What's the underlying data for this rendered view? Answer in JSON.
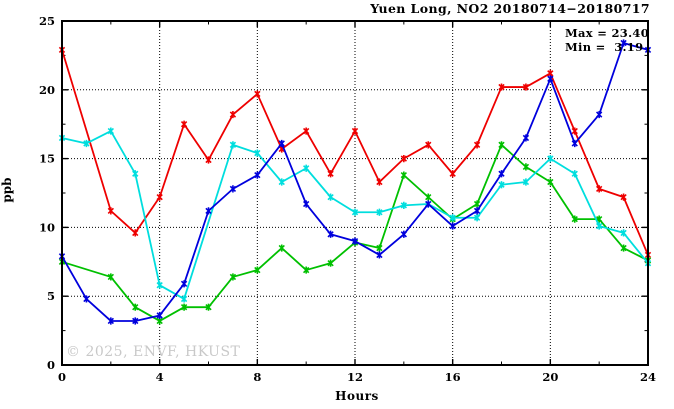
{
  "chart": {
    "title": "Yuen Long, NO2 20180714−20180717",
    "max_label": "Max = 23.40",
    "min_label": "Min =  3.19",
    "watermark": "© 2025, ENVF, HKUST",
    "xlabel": "Hours",
    "ylabel": "ppb"
  },
  "chart_data": {
    "type": "line",
    "title": "Yuen Long, NO2 20180714−20180717",
    "xlabel": "Hours",
    "ylabel": "ppb",
    "xlim": [
      0,
      24
    ],
    "ylim": [
      0,
      25
    ],
    "x_major_ticks": [
      0,
      4,
      8,
      12,
      16,
      20,
      24
    ],
    "x_minor_step": 2,
    "y_major_ticks": [
      0,
      5,
      10,
      15,
      20,
      25
    ],
    "y_minor_step": 2.5,
    "grid": true,
    "legend_position": "none",
    "annotations": {
      "max": 23.4,
      "min": 3.19
    },
    "x": [
      0,
      1,
      2,
      3,
      4,
      5,
      6,
      7,
      8,
      9,
      10,
      11,
      12,
      13,
      14,
      15,
      16,
      17,
      18,
      19,
      20,
      21,
      22,
      23,
      24
    ],
    "series": [
      {
        "name": "day1-red",
        "color": "#ee0000",
        "values": [
          22.9,
          null,
          11.2,
          9.6,
          12.2,
          17.5,
          14.9,
          18.2,
          19.7,
          15.7,
          17.0,
          13.9,
          17.0,
          13.3,
          15.0,
          16.0,
          13.9,
          16.0,
          20.2,
          20.2,
          21.2,
          17.0,
          12.8,
          12.2,
          8.0
        ]
      },
      {
        "name": "day2-green",
        "color": "#00c000",
        "values": [
          7.5,
          null,
          6.4,
          4.2,
          3.2,
          4.2,
          4.2,
          6.4,
          6.9,
          8.5,
          6.9,
          7.4,
          8.9,
          8.5,
          13.8,
          12.2,
          10.6,
          11.7,
          16.0,
          14.4,
          13.3,
          10.6,
          10.6,
          8.5,
          7.6
        ]
      },
      {
        "name": "day3-cyan",
        "color": "#00dede",
        "values": [
          16.5,
          16.1,
          17.0,
          13.9,
          5.8,
          4.8,
          null,
          16.0,
          15.4,
          13.3,
          14.3,
          12.2,
          11.1,
          11.1,
          11.6,
          11.7,
          10.7,
          10.7,
          13.1,
          13.3,
          15.0,
          13.9,
          10.1,
          9.6,
          7.4
        ]
      },
      {
        "name": "day4-blue",
        "color": "#0000dd",
        "values": [
          7.9,
          4.8,
          3.2,
          3.2,
          3.6,
          5.9,
          11.2,
          12.8,
          13.8,
          16.1,
          11.7,
          9.5,
          9.0,
          8.0,
          9.5,
          11.7,
          10.1,
          11.2,
          13.9,
          16.5,
          20.8,
          16.1,
          18.2,
          23.4,
          22.9
        ]
      }
    ]
  }
}
